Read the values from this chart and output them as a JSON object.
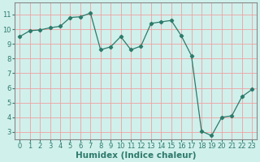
{
  "x": [
    0,
    1,
    2,
    3,
    4,
    5,
    6,
    7,
    8,
    9,
    10,
    11,
    12,
    13,
    14,
    15,
    16,
    17,
    18,
    19,
    20,
    21,
    22,
    23
  ],
  "y": [
    9.5,
    9.9,
    9.95,
    10.1,
    10.2,
    10.8,
    10.85,
    11.1,
    8.6,
    8.8,
    9.5,
    8.6,
    8.85,
    10.4,
    10.5,
    10.6,
    9.55,
    8.2,
    3.05,
    2.75,
    4.0,
    4.1,
    5.4,
    5.9
  ],
  "xlabel": "Humidex (Indice chaleur)",
  "ylim": [
    2.5,
    11.8
  ],
  "xlim": [
    -0.5,
    23.5
  ],
  "yticks": [
    3,
    4,
    5,
    6,
    7,
    8,
    9,
    10,
    11
  ],
  "xticks": [
    0,
    1,
    2,
    3,
    4,
    5,
    6,
    7,
    8,
    9,
    10,
    11,
    12,
    13,
    14,
    15,
    16,
    17,
    18,
    19,
    20,
    21,
    22,
    23
  ],
  "line_color": "#2d7a6a",
  "marker": "D",
  "marker_size": 2.2,
  "bg_color": "#d0f0ec",
  "grid_color_major": "#f0a0a0",
  "grid_color_minor": "#e8d0d0",
  "spine_color": "#888888",
  "label_fontsize": 7.5,
  "tick_fontsize": 6,
  "tick_color": "#2d7a6a"
}
